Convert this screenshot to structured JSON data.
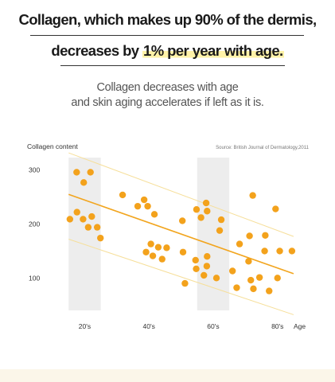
{
  "headline": {
    "line1": "Collagen, which makes up 90% of the dermis,",
    "line2_prefix": "decreases by ",
    "line2_highlight": "1% per year with age."
  },
  "subtitle": {
    "line1": "Collagen decreases with age",
    "line2": "and skin aging accelerates if left as it is."
  },
  "chart_data": {
    "type": "scatter",
    "title": "",
    "ylabel": "Collagen content",
    "xlabel": "Age",
    "source": "Source: British Journal of Dermatology,2011",
    "xlim": [
      14,
      92
    ],
    "ylim": [
      40,
      335
    ],
    "yticks": [
      {
        "value": 100,
        "label": "100"
      },
      {
        "value": 200,
        "label": "200"
      },
      {
        "value": 300,
        "label": "300"
      }
    ],
    "xticks": [
      {
        "value": 25,
        "label": "20's"
      },
      {
        "value": 45,
        "label": "40's"
      },
      {
        "value": 65,
        "label": "60's"
      },
      {
        "value": 85,
        "label": "80's"
      }
    ],
    "shaded_bands": [
      [
        20,
        30
      ],
      [
        60,
        70
      ]
    ],
    "grid": false,
    "trend_line": {
      "x": [
        20,
        90
      ],
      "y": [
        255,
        108
      ]
    },
    "band_upper": {
      "x": [
        20,
        90
      ],
      "y": [
        332,
        177
      ]
    },
    "band_lower": {
      "x": [
        20,
        90
      ],
      "y": [
        172,
        32
      ]
    },
    "points": [
      {
        "x": 22.5,
        "y": 296
      },
      {
        "x": 24.7,
        "y": 277
      },
      {
        "x": 26.8,
        "y": 296
      },
      {
        "x": 20.4,
        "y": 209
      },
      {
        "x": 22.6,
        "y": 222
      },
      {
        "x": 24.5,
        "y": 209
      },
      {
        "x": 26.1,
        "y": 194
      },
      {
        "x": 27.2,
        "y": 214
      },
      {
        "x": 28.9,
        "y": 194
      },
      {
        "x": 29.9,
        "y": 174
      },
      {
        "x": 36.8,
        "y": 254
      },
      {
        "x": 41.5,
        "y": 233
      },
      {
        "x": 43.5,
        "y": 245
      },
      {
        "x": 44.6,
        "y": 233
      },
      {
        "x": 46.7,
        "y": 218
      },
      {
        "x": 44.1,
        "y": 148
      },
      {
        "x": 45.6,
        "y": 163
      },
      {
        "x": 46.2,
        "y": 141
      },
      {
        "x": 47.9,
        "y": 157
      },
      {
        "x": 49.1,
        "y": 135
      },
      {
        "x": 50.5,
        "y": 156
      },
      {
        "x": 55.4,
        "y": 206
      },
      {
        "x": 59.8,
        "y": 227
      },
      {
        "x": 61.2,
        "y": 212
      },
      {
        "x": 62.8,
        "y": 239
      },
      {
        "x": 63.1,
        "y": 224
      },
      {
        "x": 67.5,
        "y": 208
      },
      {
        "x": 67.0,
        "y": 188
      },
      {
        "x": 55.6,
        "y": 148
      },
      {
        "x": 56.2,
        "y": 90
      },
      {
        "x": 59.5,
        "y": 133
      },
      {
        "x": 59.7,
        "y": 117
      },
      {
        "x": 62.1,
        "y": 105
      },
      {
        "x": 63.0,
        "y": 122
      },
      {
        "x": 63.1,
        "y": 140
      },
      {
        "x": 66.0,
        "y": 100
      },
      {
        "x": 71.0,
        "y": 113
      },
      {
        "x": 72.3,
        "y": 82
      },
      {
        "x": 73.2,
        "y": 163
      },
      {
        "x": 76.3,
        "y": 178
      },
      {
        "x": 76.7,
        "y": 96
      },
      {
        "x": 76.0,
        "y": 131
      },
      {
        "x": 77.5,
        "y": 80
      },
      {
        "x": 77.3,
        "y": 253
      },
      {
        "x": 79.4,
        "y": 101
      },
      {
        "x": 81.2,
        "y": 179
      },
      {
        "x": 81.0,
        "y": 150
      },
      {
        "x": 82.4,
        "y": 76
      },
      {
        "x": 84.4,
        "y": 228
      },
      {
        "x": 85.7,
        "y": 150
      },
      {
        "x": 85.0,
        "y": 100
      },
      {
        "x": 89.5,
        "y": 150
      }
    ]
  },
  "colors": {
    "point": "#f3a21c",
    "trend": "#f2a51e",
    "band_line": "#f6df9a",
    "shaded": "#ededed",
    "axis_text": "#333333"
  }
}
